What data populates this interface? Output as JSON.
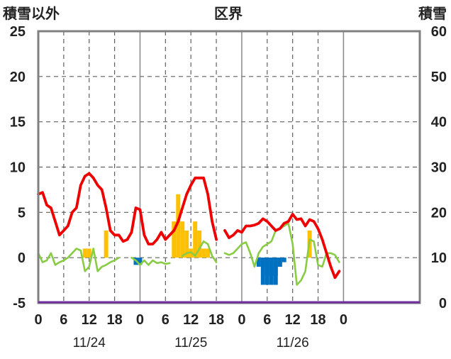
{
  "header": {
    "left_label": "積雪以外",
    "center_label": "区界",
    "right_label": "積雪"
  },
  "colors": {
    "temperature_line": "#ee0000",
    "green_line": "#88cc44",
    "bars_positive": "#ffc000",
    "bars_negative": "#0070c0",
    "baseline": "#7030a0",
    "frame": "#808080",
    "grid": "#606060"
  },
  "chart_data": {
    "type": "line",
    "grid": true,
    "x_range": [
      0,
      90
    ],
    "x_ticks": [
      {
        "x": 0,
        "label": "0"
      },
      {
        "x": 6,
        "label": "6"
      },
      {
        "x": 12,
        "label": "12"
      },
      {
        "x": 18,
        "label": "18"
      },
      {
        "x": 24,
        "label": "0"
      },
      {
        "x": 30,
        "label": "6"
      },
      {
        "x": 36,
        "label": "12"
      },
      {
        "x": 42,
        "label": "18"
      },
      {
        "x": 48,
        "label": "0"
      },
      {
        "x": 54,
        "label": "6"
      },
      {
        "x": 60,
        "label": "12"
      },
      {
        "x": 66,
        "label": "18"
      },
      {
        "x": 72,
        "label": "0"
      }
    ],
    "date_labels": [
      {
        "x": 12,
        "label": "11/24"
      },
      {
        "x": 36,
        "label": "11/25"
      },
      {
        "x": 60,
        "label": "11/26"
      }
    ],
    "y_left": {
      "range": [
        -5,
        25
      ],
      "ticks": [
        -5,
        0,
        5,
        10,
        15,
        20,
        25
      ]
    },
    "y_right": {
      "range": [
        0,
        60
      ],
      "ticks": [
        0,
        10,
        20,
        30,
        40,
        50,
        60
      ]
    },
    "series": [
      {
        "role": "red_line",
        "axis": "left",
        "x": [
          0,
          1,
          2,
          3,
          4,
          5,
          6,
          7,
          8,
          9,
          10,
          11,
          12,
          13,
          14,
          15,
          16,
          17,
          18,
          19,
          20,
          21,
          22,
          23,
          24,
          25,
          26,
          27,
          28,
          29,
          30,
          31,
          32,
          33,
          34,
          35,
          36,
          37,
          38,
          39,
          40,
          41,
          42,
          null,
          44,
          45,
          46,
          47,
          48,
          49,
          50,
          51,
          52,
          53,
          54,
          55,
          56,
          57,
          58,
          59,
          60,
          61,
          62,
          63,
          64,
          65,
          66,
          67,
          68,
          69,
          70,
          71
        ],
        "y": [
          7.0,
          7.2,
          5.8,
          5.5,
          4.0,
          2.5,
          3.0,
          3.5,
          5.0,
          5.5,
          8.0,
          9.0,
          9.3,
          8.8,
          8.0,
          7.5,
          5.5,
          3.0,
          2.5,
          2.5,
          1.8,
          2.0,
          2.8,
          5.5,
          5.3,
          2.5,
          1.5,
          1.5,
          2.0,
          2.8,
          2.0,
          2.5,
          3.0,
          4.0,
          5.5,
          7.0,
          8.0,
          8.8,
          8.8,
          8.8,
          7.0,
          4.0,
          2.0,
          null,
          3.0,
          2.2,
          2.5,
          3.0,
          2.8,
          3.5,
          3.5,
          3.6,
          3.8,
          4.3,
          4.0,
          3.5,
          3.0,
          3.2,
          3.8,
          4.0,
          4.8,
          4.2,
          4.3,
          3.5,
          4.2,
          4.0,
          3.2,
          2.0,
          0.5,
          -1.0,
          -2.2,
          -1.5
        ]
      },
      {
        "role": "green_line",
        "axis": "left",
        "x": [
          0,
          1,
          2,
          3,
          4,
          5,
          6,
          7,
          8,
          9,
          10,
          11,
          12,
          13,
          14,
          15,
          16,
          17,
          18,
          19,
          null,
          22,
          23,
          24,
          25,
          26,
          27,
          28,
          29,
          30,
          31,
          null,
          34,
          35,
          36,
          37,
          38,
          39,
          40,
          41,
          42,
          null,
          44,
          45,
          46,
          47,
          48,
          49,
          50,
          51,
          52,
          53,
          54,
          55,
          56,
          57,
          58,
          59,
          60,
          61,
          62,
          63,
          64,
          65,
          66,
          67,
          68,
          69,
          70,
          71
        ],
        "y": [
          0.5,
          -0.5,
          -0.3,
          0.5,
          -0.8,
          -0.5,
          -0.3,
          0.0,
          0.5,
          1.0,
          0.8,
          -1.5,
          -1.0,
          1.0,
          -1.5,
          -1.0,
          -0.8,
          -0.5,
          -0.3,
          0.0,
          null,
          0.0,
          -0.3,
          -0.8,
          -0.3,
          -0.8,
          -0.3,
          -0.6,
          -0.5,
          -0.7,
          -0.6,
          null,
          0.2,
          0.5,
          0.6,
          0.2,
          1.0,
          1.8,
          1.5,
          0.2,
          -0.5,
          null,
          0.5,
          0.3,
          0.5,
          1.0,
          1.5,
          1.7,
          0.5,
          -1.0,
          0.5,
          1.2,
          1.5,
          1.8,
          3.0,
          3.2,
          3.5,
          3.8,
          1.5,
          -3.0,
          -2.5,
          -1.5,
          2.0,
          1.8,
          -0.8,
          -1.0,
          0.5,
          0.5,
          0.3,
          -0.5
        ]
      },
      {
        "role": "bars",
        "axis": "left",
        "x": [
          11,
          12,
          16,
          32,
          33,
          34,
          35,
          36,
          37,
          38,
          39,
          40,
          53,
          54,
          55,
          56,
          57,
          64
        ],
        "y": [
          1.0,
          1.0,
          3.0,
          4.0,
          7.0,
          4.0,
          3.0,
          1.0,
          4.0,
          3.0,
          1.0,
          1.0,
          -1.0,
          -3.0,
          -2.0,
          -3.0,
          -1.0,
          3.0
        ]
      },
      {
        "role": "bars_blue",
        "axis": "left",
        "x": [
          23,
          24,
          52,
          53,
          54,
          55,
          56,
          57,
          58
        ],
        "y": [
          -0.8,
          -0.8,
          -1.0,
          -3.0,
          -2.0,
          -3.0,
          -2.0,
          -1.0,
          -0.5
        ]
      }
    ]
  }
}
